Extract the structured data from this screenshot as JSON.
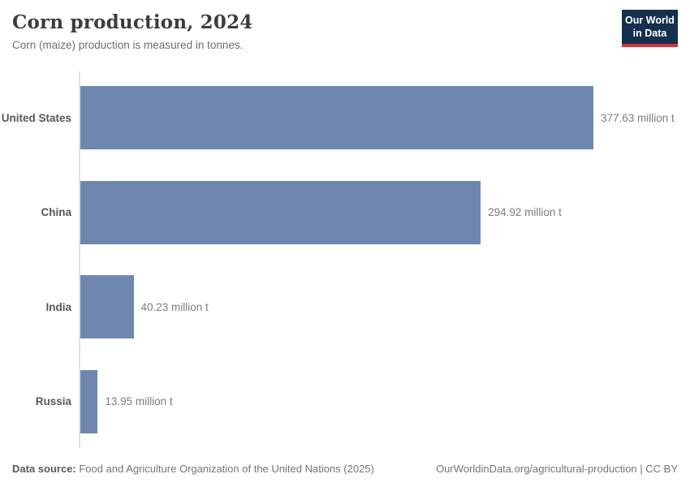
{
  "header": {
    "title": "Corn production, 2024",
    "subtitle": "Corn (maize) production is measured in tonnes.",
    "logo": {
      "line1": "Our World",
      "line2": "in Data"
    }
  },
  "chart_data": {
    "type": "bar",
    "orientation": "horizontal",
    "title": "Corn production, 2024",
    "subtitle": "Corn (maize) production is measured in tonnes.",
    "categories": [
      "United States",
      "China",
      "India",
      "Russia"
    ],
    "values": [
      377.63,
      294.92,
      40.23,
      13.95
    ],
    "value_labels": [
      "377.63 million t",
      "294.92 million t",
      "40.23 million t",
      "13.95 million t"
    ],
    "unit": "million t",
    "xlabel": "",
    "ylabel": "",
    "xlim": [
      0,
      377.63
    ],
    "grid": false,
    "legend": "none",
    "bar_color": "#6e87ae",
    "axis_line_color": "#e2e2e2"
  },
  "footer": {
    "datasource_label": "Data source:",
    "datasource_text": " Food and Agriculture Organization of the United Nations (2025)",
    "link_text": "OurWorldinData.org/agricultural-production | CC BY"
  }
}
